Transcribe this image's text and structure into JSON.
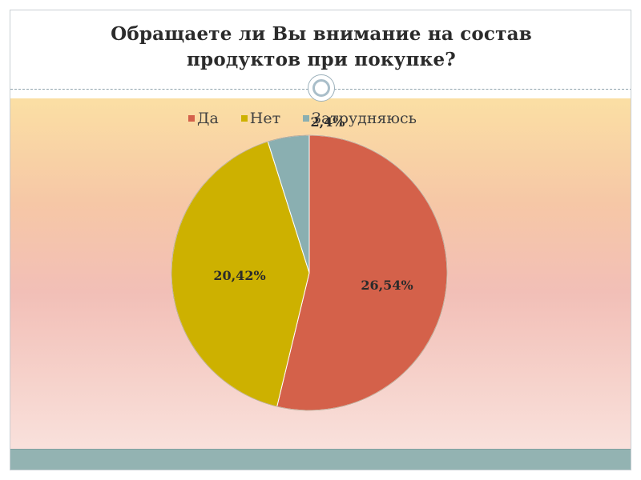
{
  "slide": {
    "title_line1": "Обращаете ли Вы внимание на состав",
    "title_line2": "продуктов при покупке?"
  },
  "chart_data": {
    "type": "pie",
    "title": "Обращаете ли Вы внимание на состав продуктов при покупке?",
    "legend_position": "top",
    "categories": [
      "Да",
      "Нет",
      "Затрудняюсь"
    ],
    "values": [
      26.54,
      20.42,
      2.4
    ],
    "labels": [
      "26,54%",
      "20,42%",
      "2,4%"
    ],
    "colors": [
      "#d4614a",
      "#cdb100",
      "#8aafb1"
    ]
  },
  "colors": {
    "slide_border": "#c9cfd4",
    "bottom_bar": "#93b3b2",
    "gradient_top": "#fbdfa4",
    "gradient_bottom": "#f9e1dc"
  }
}
